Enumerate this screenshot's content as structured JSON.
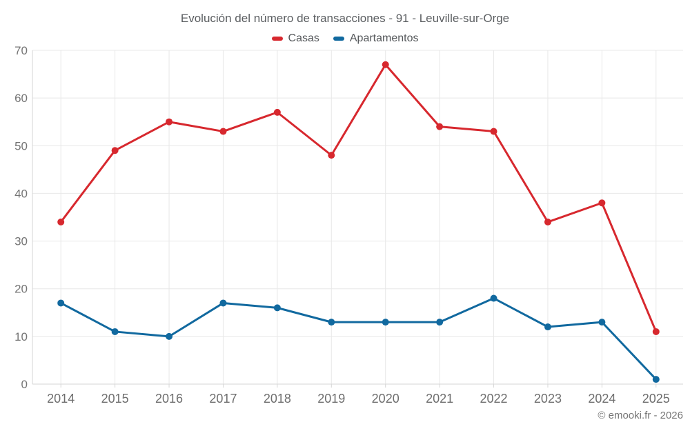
{
  "header": {
    "title": "Evolución del número de transacciones - 91 - Leuville-sur-Orge"
  },
  "footer": {
    "credit": "© emooki.fr - 2026"
  },
  "theme": {
    "grid_color": "#e8e8e8",
    "axis_color": "#d6d6d6",
    "tick_label_color": "#757575",
    "x_label_color": "#6e6e6e",
    "title_color": "#5b5e61",
    "background": "#ffffff"
  },
  "chart_data": {
    "type": "line",
    "title": "Evolución del número de transacciones - 91 - Leuville-sur-Orge",
    "categories": [
      "2014",
      "2015",
      "2016",
      "2017",
      "2018",
      "2019",
      "2020",
      "2021",
      "2022",
      "2023",
      "2024",
      "2025"
    ],
    "series": [
      {
        "name": "Casas",
        "color": "#d7282e",
        "values": [
          34,
          49,
          55,
          53,
          57,
          48,
          67,
          54,
          53,
          34,
          38,
          11
        ]
      },
      {
        "name": "Apartamentos",
        "color": "#11699f",
        "values": [
          17,
          11,
          10,
          17,
          16,
          13,
          13,
          13,
          18,
          12,
          13,
          1
        ]
      }
    ],
    "xlabel": "",
    "ylabel": "",
    "ylim": [
      0,
      70
    ],
    "ytick_step": 10,
    "grid": true,
    "legend_position": "top",
    "marker_radius": 5,
    "line_width": 3
  }
}
